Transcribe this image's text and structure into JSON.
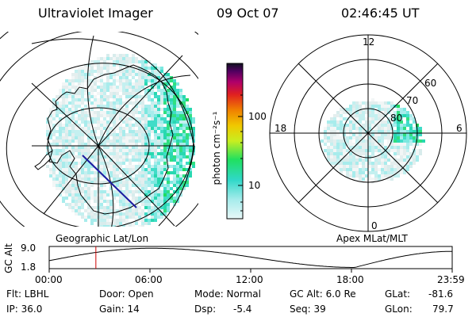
{
  "header": {
    "instrument": "Ultraviolet Imager",
    "date": "09 Oct 07",
    "time": "02:46:45 UT"
  },
  "colorbar": {
    "unit_label": "photon cm⁻²s⁻¹",
    "ticks": [
      "100",
      "10"
    ]
  },
  "left_map": {
    "caption": "Geographic Lat/Lon"
  },
  "right_map": {
    "caption": "Apex MLat/MLT",
    "mlt_labels": {
      "top": "12",
      "left": "18",
      "right": "6",
      "bottom": "0"
    },
    "lat_labels": [
      "60",
      "70",
      "80"
    ]
  },
  "altitude_plot": {
    "ylabel": "GC Alt",
    "yticks": [
      "9.0",
      "1.8"
    ],
    "xticks": [
      "00:00",
      "06:00",
      "12:00",
      "18:00",
      "23:59"
    ],
    "current_time_hours": 2.78
  },
  "info": {
    "flt": "Flt: LBHL",
    "ip": "IP: 36.0",
    "door": "Door: Open",
    "gain": "Gain: 14",
    "mode": "Mode: Normal",
    "dsp_label": "Dsp:",
    "dsp_value": "-5.4",
    "gc_alt": "GC Alt: 6.0 Re",
    "seq": "Seq: 39",
    "glat_label": "GLat:",
    "glat_value": "-81.6",
    "glon_label": "GLon:",
    "glon_value": "79.7"
  },
  "colors": {
    "background": "#ffffff",
    "line": "#000000",
    "marker": "#cc0000",
    "dayglow": "#19e0b0",
    "emission_low": "#b8f4f4"
  }
}
